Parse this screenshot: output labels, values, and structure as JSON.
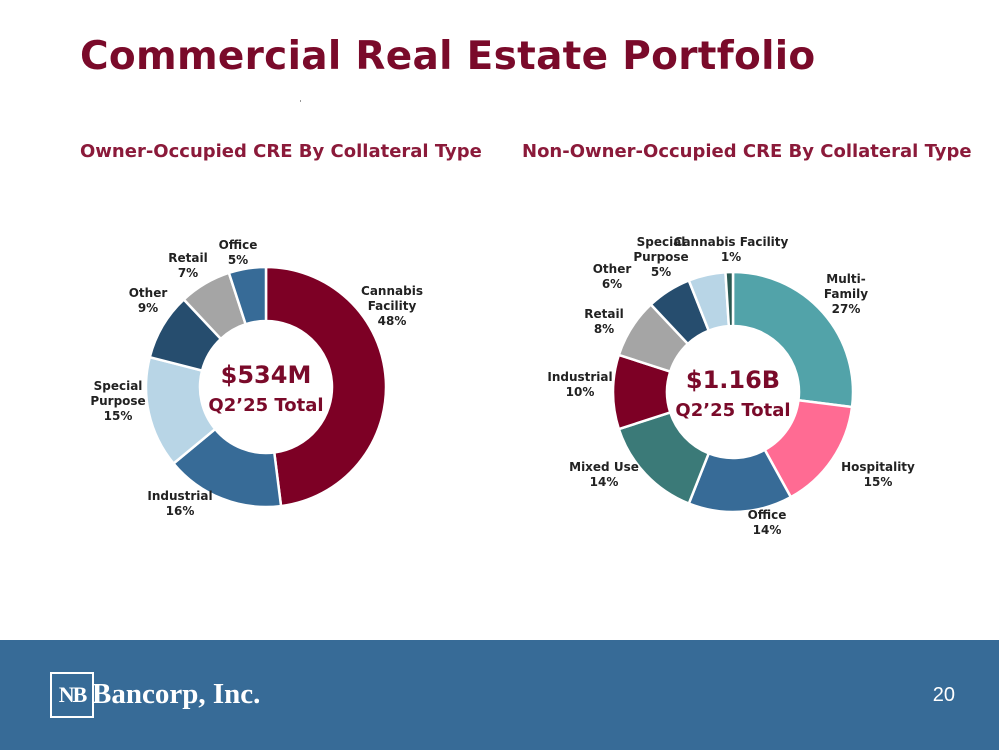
{
  "page": {
    "title": "Commercial Real Estate Portfolio",
    "page_number": "20",
    "logo": {
      "mark": "NB",
      "name": "Bancorp, Inc."
    }
  },
  "chart_data": [
    {
      "type": "pie",
      "title": "Owner-Occupied CRE By Collateral Type",
      "center_value": "$534M",
      "center_caption": "Q2’25 Total",
      "slices": [
        {
          "name": "Cannabis Facility",
          "label_lines": [
            "Cannabis",
            "Facility",
            "48%"
          ],
          "value": 48,
          "color": "#7d0025"
        },
        {
          "name": "Industrial",
          "label_lines": [
            "Industrial",
            "16%"
          ],
          "value": 16,
          "color": "#376b97"
        },
        {
          "name": "Special Purpose",
          "label_lines": [
            "Special",
            "Purpose",
            "15%"
          ],
          "value": 15,
          "color": "#b8d5e6"
        },
        {
          "name": "Other",
          "label_lines": [
            "Other",
            "9%"
          ],
          "value": 9,
          "color": "#264d6e"
        },
        {
          "name": "Retail",
          "label_lines": [
            "Retail",
            "7%"
          ],
          "value": 7,
          "color": "#a5a5a5"
        },
        {
          "name": "Office",
          "label_lines": [
            "Office",
            "5%"
          ],
          "value": 5,
          "color": "#376b97"
        }
      ]
    },
    {
      "type": "pie",
      "title": "Non-Owner-Occupied CRE By Collateral Type",
      "center_value": "$1.16B",
      "center_caption": "Q2’25 Total",
      "slices": [
        {
          "name": "Multi-Family",
          "label_lines": [
            "Multi-",
            "Family",
            "27%"
          ],
          "value": 27,
          "color": "#52a3a9"
        },
        {
          "name": "Hospitality",
          "label_lines": [
            "Hospitality",
            "15%"
          ],
          "value": 15,
          "color": "#ff6b93"
        },
        {
          "name": "Office",
          "label_lines": [
            "Office",
            "14%"
          ],
          "value": 14,
          "color": "#376b97"
        },
        {
          "name": "Mixed Use",
          "label_lines": [
            "Mixed Use",
            "14%"
          ],
          "value": 14,
          "color": "#3b7a78"
        },
        {
          "name": "Industrial",
          "label_lines": [
            "Industrial",
            "10%"
          ],
          "value": 10,
          "color": "#7d0025"
        },
        {
          "name": "Retail",
          "label_lines": [
            "Retail",
            "8%"
          ],
          "value": 8,
          "color": "#a5a5a5"
        },
        {
          "name": "Other",
          "label_lines": [
            "Other",
            "6%"
          ],
          "value": 6,
          "color": "#264d6e"
        },
        {
          "name": "Special Purpose",
          "label_lines": [
            "Special",
            "Purpose",
            "5%"
          ],
          "value": 5,
          "color": "#b8d5e6"
        },
        {
          "name": "Cannabis Facility",
          "label_lines": [
            "Cannabis Facility",
            "1%"
          ],
          "value": 1,
          "color": "#2a5953"
        }
      ]
    }
  ]
}
